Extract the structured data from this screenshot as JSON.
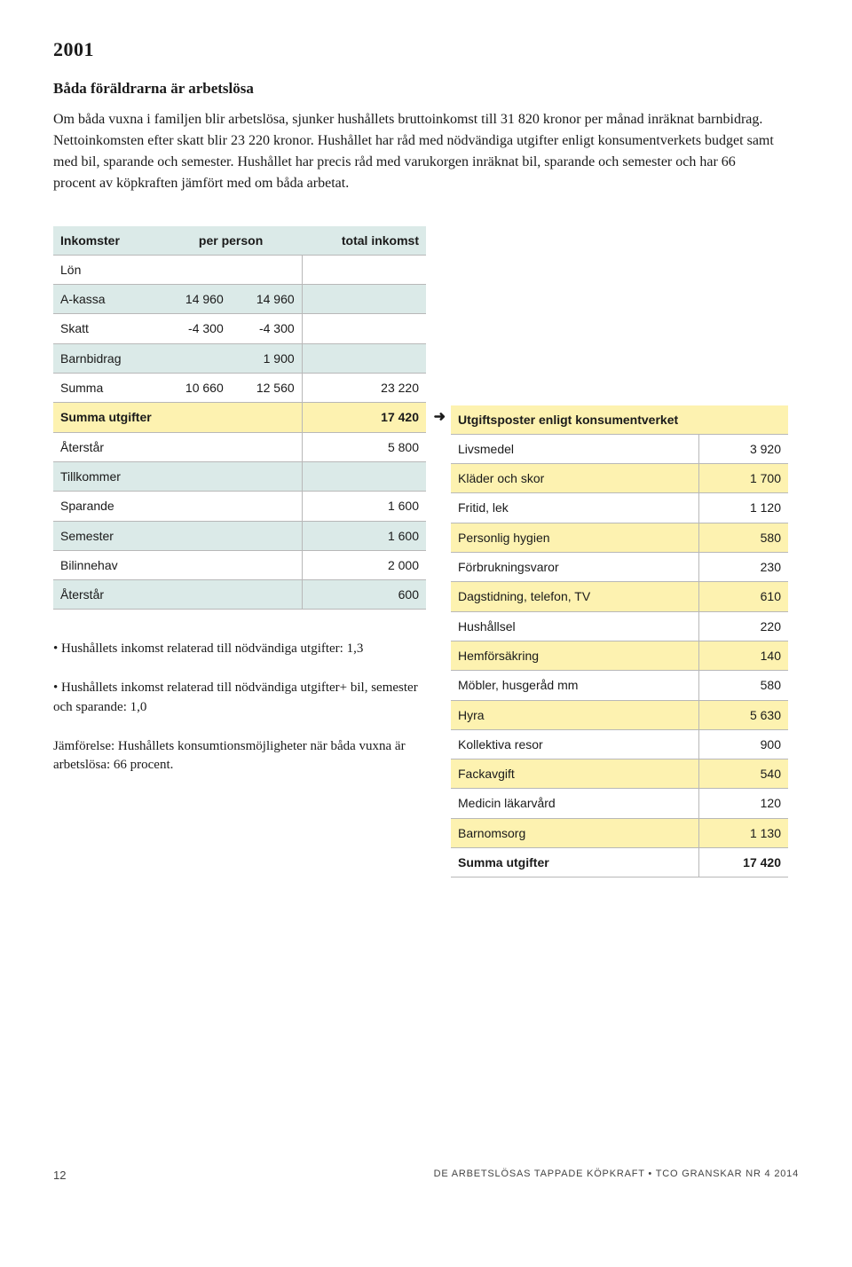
{
  "header": {
    "year": "2001",
    "subtitle": "Båda föräldrarna är arbetslösa",
    "intro": "Om båda vuxna i familjen blir arbetslösa, sjunker hushållets bruttoinkomst till 31 820 kronor per månad inräknat barnbidrag. Nettoinkomsten efter skatt blir 23 220 kronor. Hushållet har råd med nödvändiga utgifter enligt konsument­verkets budget samt med bil, sparande och semester. Hushållet har precis råd med varukorgen inräknat bil, sparande och semester och har 66 procent av köpkraften jämfört med om båda arbetat."
  },
  "incomeTable": {
    "hdr_inkomster": "Inkomster",
    "hdr_perperson": "per person",
    "hdr_total": "total inkomst",
    "lon": "Lön",
    "akassa": {
      "label": "A-kassa",
      "v1": "14 960",
      "v2": "14 960"
    },
    "skatt": {
      "label": "Skatt",
      "v1": "-4 300",
      "v2": "-4 300"
    },
    "barnbidrag": {
      "label": "Barnbidrag",
      "v": "1 900"
    },
    "summa": {
      "label": "Summa",
      "v1": "10 660",
      "v2": "12 560",
      "total": "23 220"
    },
    "summa_utgifter": {
      "label": "Summa utgifter",
      "v": "17 420"
    },
    "aterstar1": {
      "label": "Återstår",
      "v": "5 800"
    },
    "tillkommer": "Tillkommer",
    "sparande": {
      "label": "Sparande",
      "v": "1 600"
    },
    "semester": {
      "label": "Semester",
      "v": "1 600"
    },
    "bilinnehav": {
      "label": "Bilinnehav",
      "v": "2 000"
    },
    "aterstar2": {
      "label": "Återstår",
      "v": "600"
    }
  },
  "bullets": {
    "b1": "• Hushållets inkomst relaterad till nödvändiga utgifter: 1,3",
    "b2": "• Hushållets inkomst relaterad till nödvändiga utgifter+ bil, semester och sparande: 1,0",
    "b3": "Jämförelse: Hushållets konsumtionsmöjligheter när båda vuxna är arbetslösa: 66 procent."
  },
  "expenseTable": {
    "header": "Utgiftsposter enligt konsumentverket",
    "rows": [
      {
        "label": "Livsmedel",
        "v": "3 920",
        "hl": false
      },
      {
        "label": "Kläder och skor",
        "v": "1 700",
        "hl": true
      },
      {
        "label": "Fritid, lek",
        "v": "1 120",
        "hl": false
      },
      {
        "label": "Personlig hygien",
        "v": "580",
        "hl": true
      },
      {
        "label": "Förbrukningsvaror",
        "v": "230",
        "hl": false
      },
      {
        "label": "Dagstidning, telefon, TV",
        "v": "610",
        "hl": true
      },
      {
        "label": "Hushållsel",
        "v": "220",
        "hl": false
      },
      {
        "label": "Hemförsäkring",
        "v": "140",
        "hl": true
      },
      {
        "label": "Möbler, husgeråd mm",
        "v": "580",
        "hl": false
      },
      {
        "label": "Hyra",
        "v": "5 630",
        "hl": true
      },
      {
        "label": "Kollektiva resor",
        "v": "900",
        "hl": false
      },
      {
        "label": "Fackavgift",
        "v": "540",
        "hl": true
      },
      {
        "label": "Medicin läkarvård",
        "v": "120",
        "hl": false
      },
      {
        "label": "Barnomsorg",
        "v": "1 130",
        "hl": true
      }
    ],
    "sum": {
      "label": "Summa utgifter",
      "v": "17 420"
    }
  },
  "footer": {
    "page": "12",
    "text_left": "DE ARBETSLÖSAS TAPPADE KÖPKRAFT",
    "text_right": "TCO GRANSKAR NR 4 2014"
  },
  "colors": {
    "blue": "#dbeae8",
    "yellow": "#fdf2b0",
    "border": "#b8b8b8",
    "text": "#1a1a1a"
  }
}
